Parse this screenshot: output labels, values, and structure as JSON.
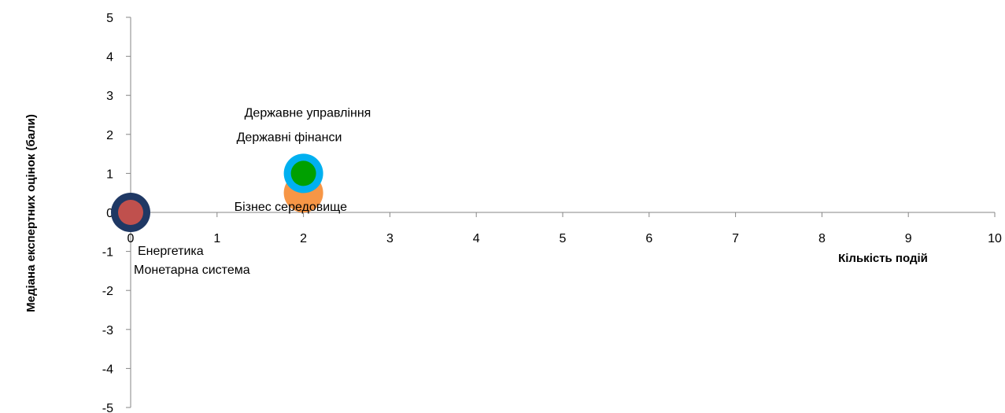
{
  "chart_data": {
    "type": "scatter",
    "xlabel": "Кількість подій",
    "ylabel": "Медіана експертних оцінок (бали)",
    "xlim": [
      0,
      10
    ],
    "ylim": [
      -5,
      5
    ],
    "x_ticks": [
      "0",
      "1",
      "2",
      "3",
      "4",
      "5",
      "6",
      "7",
      "8",
      "9",
      "10"
    ],
    "y_ticks": [
      "5",
      "4",
      "3",
      "2",
      "1",
      "0",
      "-1",
      "-2",
      "-3",
      "-4",
      "-5"
    ],
    "grid": false,
    "legend": "none",
    "points": [
      {
        "label": "Енергетика",
        "x": 0,
        "y": 0,
        "color": "#1F3864",
        "size": "large"
      },
      {
        "label": "Монетарна система",
        "x": 0,
        "y": 0,
        "color": "#C0504D",
        "size": "medium"
      },
      {
        "label": "Бізнес середовище",
        "x": 2,
        "y": 0.5,
        "color": "#F79646",
        "size": "large"
      },
      {
        "label": "Державне управління",
        "x": 2,
        "y": 1,
        "color": "#00B0F0",
        "size": "large"
      },
      {
        "label": "Державні фінанси",
        "x": 2,
        "y": 1,
        "color": "#00A000",
        "size": "medium"
      }
    ]
  }
}
